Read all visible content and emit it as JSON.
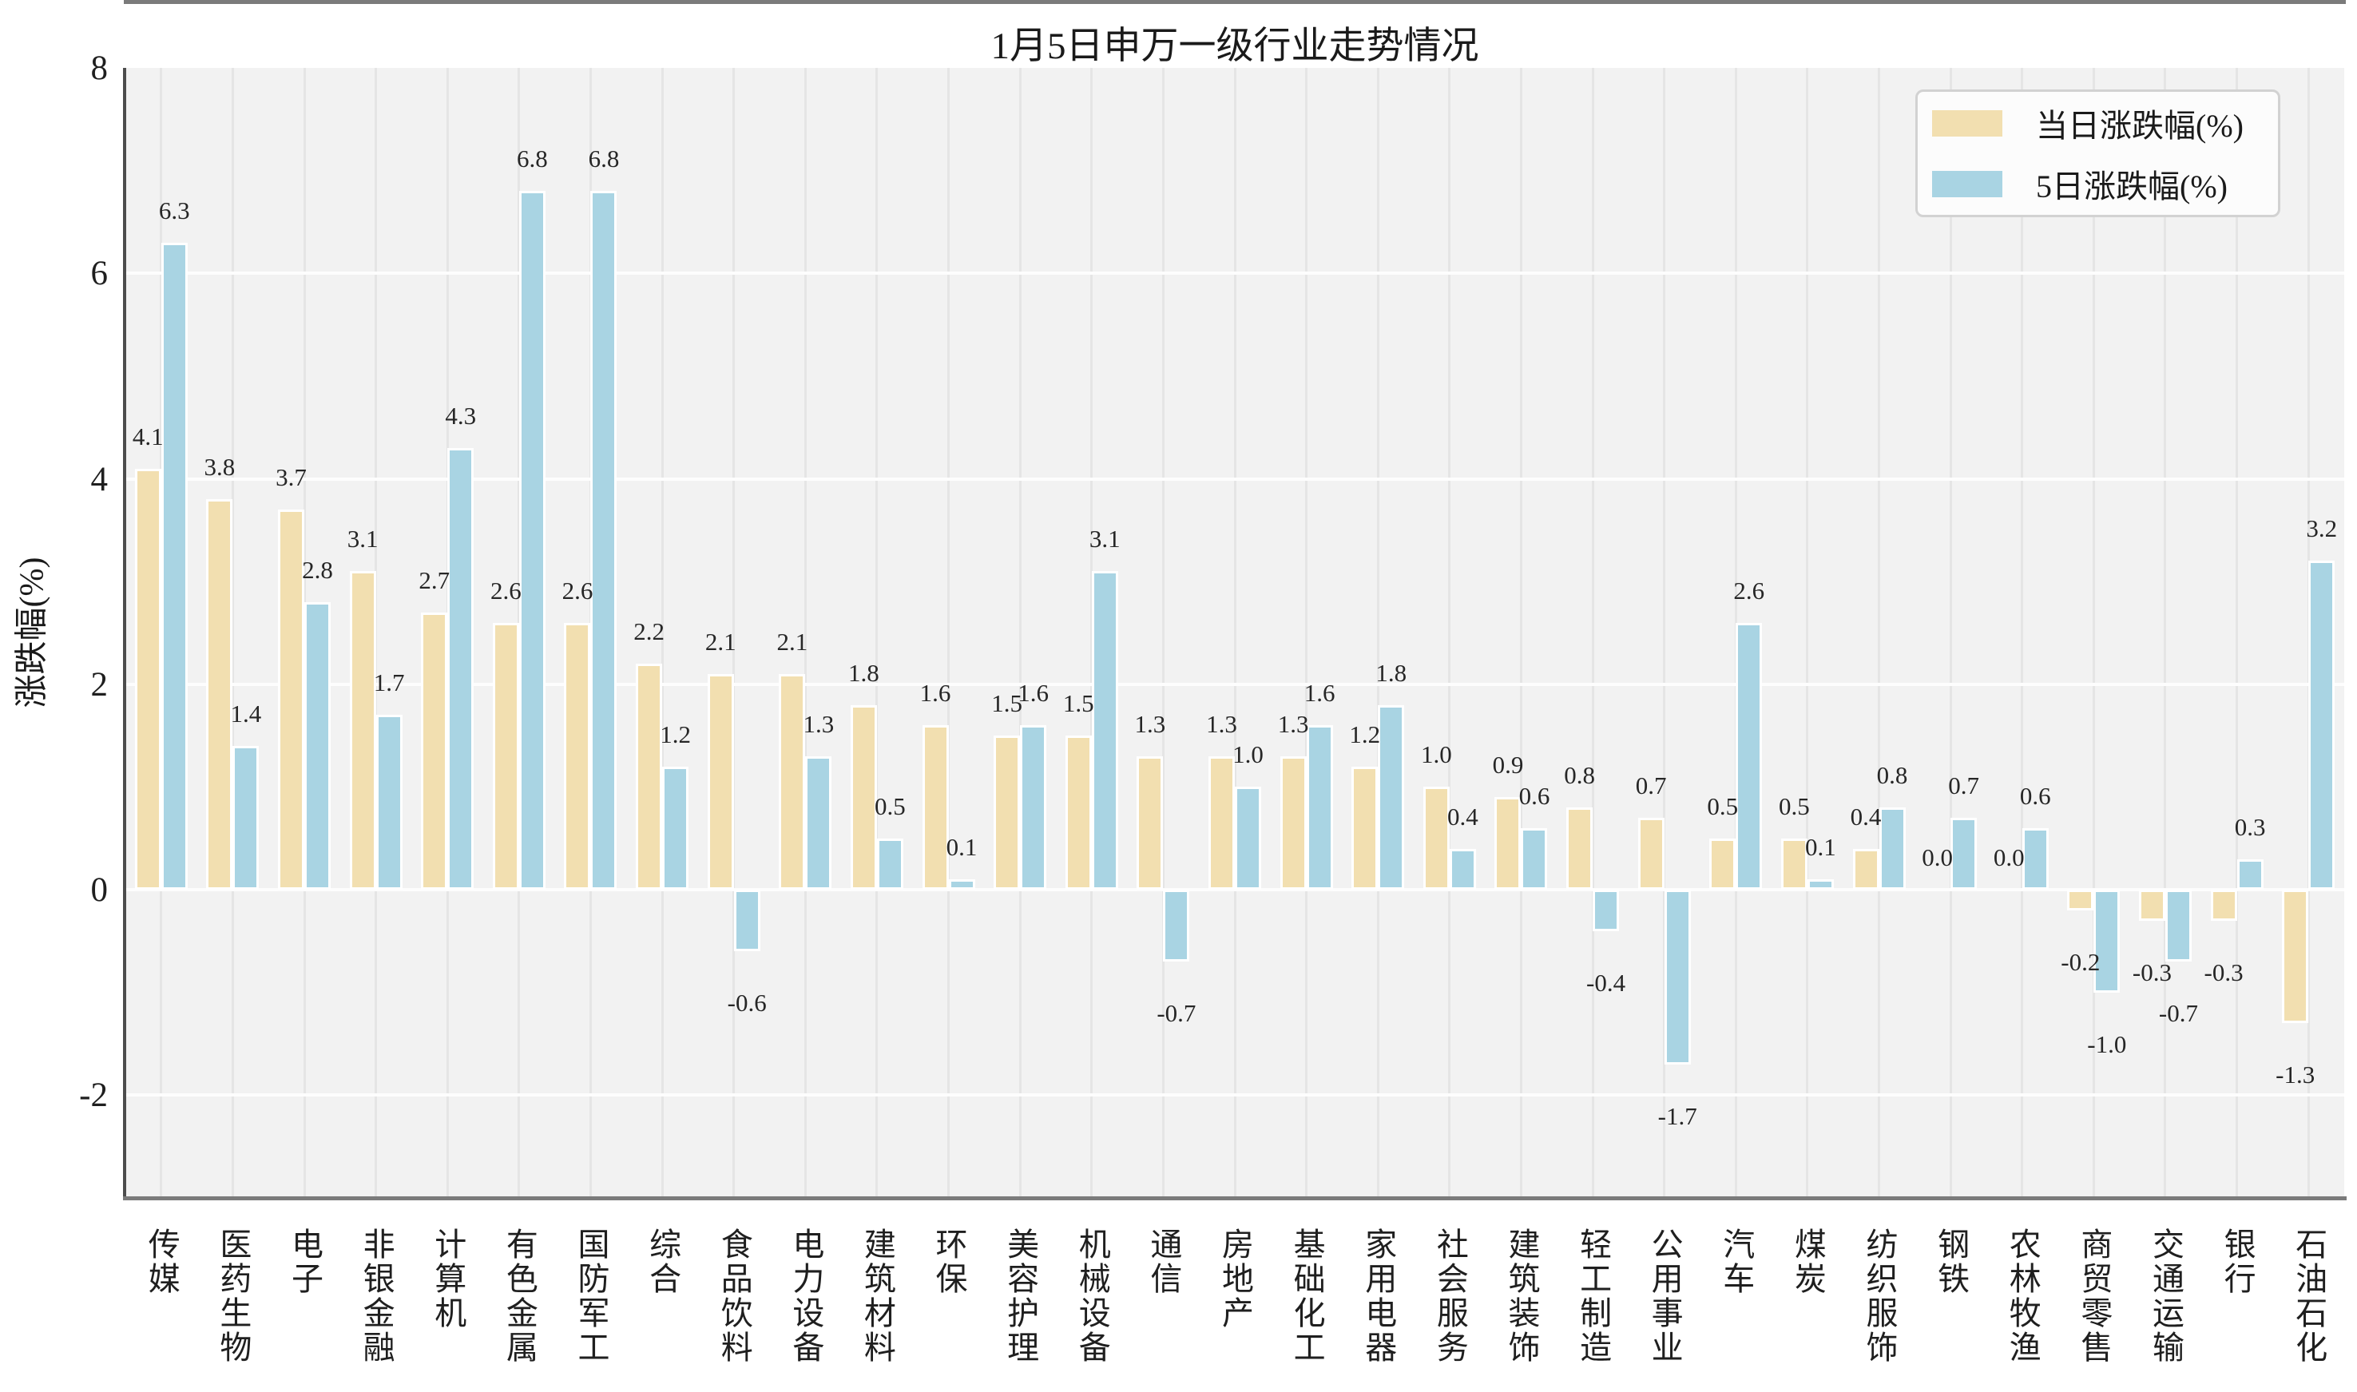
{
  "title": "1月5日申万一级行业走势情况",
  "ylabel": "涨跌幅(%)",
  "legend": [
    "当日涨跌幅(%)",
    "5日涨跌幅(%)"
  ],
  "colors": {
    "daily_bar": "#f2dfb0",
    "five_day_bar": "#a9d4e3",
    "plot_background": "#f2f2f2",
    "zero_line": "#7b7b7b",
    "text": "#1f1f1f"
  },
  "chart_data": {
    "type": "bar",
    "title": "1月5日申万一级行业走势情况",
    "xlabel": "",
    "ylabel": "涨跌幅(%)",
    "ylim": [
      -3,
      8
    ],
    "yticks": [
      8,
      6,
      4,
      2,
      0,
      -2
    ],
    "grid": "horizontal white major lines, faint vertical lines at each category",
    "legend_position": "upper right",
    "categories": [
      "传媒",
      "医药生物",
      "电子",
      "非银金融",
      "计算机",
      "有色金属",
      "国防军工",
      "综合",
      "食品饮料",
      "电力设备",
      "建筑材料",
      "环保",
      "美容护理",
      "机械设备",
      "通信",
      "房地产",
      "基础化工",
      "家用电器",
      "社会服务",
      "建筑装饰",
      "轻工制造",
      "公用事业",
      "汽车",
      "煤炭",
      "纺织服饰",
      "钢铁",
      "农林牧渔",
      "商贸零售",
      "交通运输",
      "银行",
      "石油石化"
    ],
    "series": [
      {
        "name": "当日涨跌幅(%)",
        "color": "#f2dfb0",
        "values": [
          4.1,
          3.8,
          3.7,
          3.1,
          2.7,
          2.6,
          2.6,
          2.2,
          2.1,
          2.1,
          1.8,
          1.6,
          1.5,
          1.5,
          1.3,
          1.3,
          1.3,
          1.2,
          1.0,
          0.9,
          0.8,
          0.7,
          0.5,
          0.5,
          0.4,
          0.0,
          0.0,
          -0.2,
          -0.3,
          -0.3,
          -1.3
        ]
      },
      {
        "name": "5日涨跌幅(%)",
        "color": "#a9d4e3",
        "values": [
          6.3,
          1.4,
          2.8,
          1.7,
          4.3,
          6.8,
          6.8,
          1.2,
          -0.6,
          1.3,
          0.5,
          0.1,
          1.6,
          3.1,
          -0.7,
          1.0,
          1.6,
          1.8,
          0.4,
          0.6,
          -0.4,
          -1.7,
          2.6,
          0.1,
          0.8,
          0.7,
          0.6,
          -1.0,
          -0.7,
          0.3,
          3.2
        ]
      }
    ]
  }
}
